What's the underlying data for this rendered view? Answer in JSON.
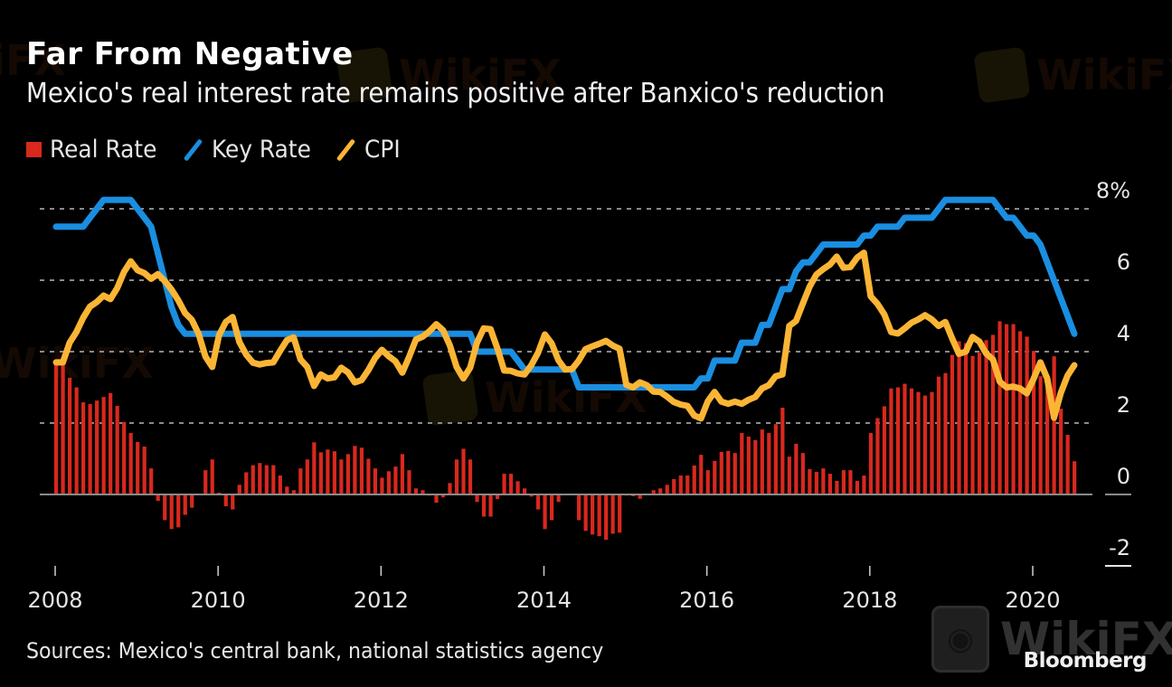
{
  "header": {
    "title": "Far From Negative",
    "subtitle": "Mexico's real interest rate remains positive after Banxico's reduction"
  },
  "legend": [
    {
      "label": "Real Rate",
      "color": "#d9281e",
      "shape": "square"
    },
    {
      "label": "Key Rate",
      "color": "#1a8ee0",
      "shape": "line"
    },
    {
      "label": "CPI",
      "color": "#fbb535",
      "shape": "line"
    }
  ],
  "footer": {
    "source": "Sources: Mexico's central bank, national statistics agency",
    "brand": "Bloomberg",
    "watermark": "WikiFX"
  },
  "chart_data": {
    "type": "bar+line",
    "title": "Far From Negative",
    "subtitle": "Mexico's real interest rate remains positive after Banxico's reduction",
    "xlabel": "",
    "ylabel": "",
    "frequency": "monthly",
    "start": "2008-01",
    "end": "2020-07",
    "x_ticks": [
      "2008",
      "2010",
      "2012",
      "2014",
      "2016",
      "2018",
      "2020"
    ],
    "y_ticks": [
      {
        "value": 8,
        "label": "8%"
      },
      {
        "value": 6,
        "label": "6"
      },
      {
        "value": 4,
        "label": "4"
      },
      {
        "value": 2,
        "label": "2"
      },
      {
        "value": 0,
        "label": "0"
      },
      {
        "value": -2,
        "label": "-2"
      }
    ],
    "ylim": [
      -2,
      8
    ],
    "grid": true,
    "legend_position": "top-left",
    "series": [
      {
        "name": "Real Rate",
        "type": "bar",
        "color": "#d9281e",
        "values": [
          3.7,
          3.7,
          3.27,
          3.0,
          2.58,
          2.53,
          2.63,
          2.73,
          2.84,
          2.48,
          2.03,
          1.72,
          1.47,
          1.34,
          0.73,
          -0.18,
          -0.72,
          -0.97,
          -0.92,
          -0.57,
          -0.37,
          -0.02,
          0.68,
          0.98,
          0.05,
          -0.33,
          -0.42,
          0.27,
          0.62,
          0.82,
          0.88,
          0.82,
          0.82,
          0.53,
          0.22,
          0.12,
          0.73,
          0.98,
          1.46,
          1.18,
          1.26,
          1.21,
          0.98,
          1.13,
          1.36,
          1.31,
          1.0,
          0.73,
          0.47,
          0.65,
          0.78,
          1.13,
          0.68,
          0.17,
          0.12,
          -0.03,
          -0.23,
          -0.08,
          0.32,
          0.98,
          1.28,
          0.98,
          -0.21,
          -0.62,
          -0.62,
          -0.13,
          0.58,
          0.58,
          0.37,
          0.17,
          -0.06,
          -0.42,
          -0.97,
          -0.72,
          -0.21,
          -0.02,
          -0.02,
          -0.72,
          -1.02,
          -1.12,
          -1.17,
          -1.27,
          -1.1,
          -1.07,
          -0.03,
          -0.05,
          -0.12,
          0.0,
          0.12,
          0.17,
          0.27,
          0.43,
          0.53,
          0.53,
          0.81,
          1.11,
          0.68,
          0.94,
          1.19,
          1.22,
          1.16,
          1.72,
          1.62,
          1.52,
          1.82,
          1.72,
          1.97,
          2.43,
          1.06,
          1.42,
          1.16,
          0.71,
          0.63,
          0.73,
          0.58,
          0.38,
          0.68,
          0.68,
          0.38,
          0.53,
          1.72,
          2.14,
          2.47,
          2.97,
          3.0,
          3.1,
          2.97,
          2.87,
          2.77,
          2.87,
          3.3,
          3.4,
          3.91,
          4.29,
          4.24,
          3.88,
          3.97,
          4.32,
          4.47,
          4.85,
          4.77,
          4.77,
          4.57,
          4.42,
          4.02,
          3.31,
          3.0,
          3.87,
          2.4,
          1.67,
          0.93
        ]
      },
      {
        "name": "Key Rate",
        "type": "line",
        "color": "#1a8ee0",
        "values": [
          7.5,
          7.5,
          7.5,
          7.5,
          7.5,
          7.75,
          8.0,
          8.25,
          8.25,
          8.25,
          8.25,
          8.25,
          8.0,
          7.75,
          7.5,
          6.75,
          6.0,
          5.25,
          4.75,
          4.5,
          4.5,
          4.5,
          4.5,
          4.5,
          4.5,
          4.5,
          4.5,
          4.5,
          4.5,
          4.5,
          4.5,
          4.5,
          4.5,
          4.5,
          4.5,
          4.5,
          4.5,
          4.5,
          4.5,
          4.5,
          4.5,
          4.5,
          4.5,
          4.5,
          4.5,
          4.5,
          4.5,
          4.5,
          4.5,
          4.5,
          4.5,
          4.5,
          4.5,
          4.5,
          4.5,
          4.5,
          4.5,
          4.5,
          4.5,
          4.5,
          4.5,
          4.5,
          4.0,
          4.0,
          4.0,
          4.0,
          4.0,
          4.0,
          3.75,
          3.5,
          3.5,
          3.5,
          3.5,
          3.5,
          3.5,
          3.5,
          3.5,
          3.0,
          3.0,
          3.0,
          3.0,
          3.0,
          3.0,
          3.0,
          3.0,
          3.0,
          3.0,
          3.0,
          3.0,
          3.0,
          3.0,
          3.0,
          3.0,
          3.0,
          3.0,
          3.25,
          3.25,
          3.75,
          3.75,
          3.75,
          3.75,
          4.25,
          4.25,
          4.25,
          4.75,
          4.75,
          5.25,
          5.75,
          5.75,
          6.25,
          6.5,
          6.5,
          6.75,
          7.0,
          7.0,
          7.0,
          7.0,
          7.0,
          7.0,
          7.25,
          7.25,
          7.5,
          7.5,
          7.5,
          7.5,
          7.75,
          7.75,
          7.75,
          7.75,
          7.75,
          8.0,
          8.25,
          8.25,
          8.25,
          8.25,
          8.25,
          8.25,
          8.25,
          8.25,
          8.0,
          7.75,
          7.75,
          7.5,
          7.25,
          7.25,
          7.0,
          6.5,
          6.0,
          5.5,
          5.0,
          4.5
        ]
      },
      {
        "name": "CPI",
        "type": "line",
        "color": "#fbb535",
        "values": [
          3.7,
          3.7,
          4.25,
          4.55,
          4.95,
          5.26,
          5.39,
          5.57,
          5.47,
          5.78,
          6.23,
          6.53,
          6.28,
          6.2,
          6.04,
          6.17,
          5.98,
          5.74,
          5.44,
          5.08,
          4.89,
          4.5,
          3.86,
          3.57,
          4.46,
          4.83,
          4.97,
          4.27,
          3.92,
          3.69,
          3.64,
          3.68,
          3.7,
          4.02,
          4.32,
          4.4,
          3.78,
          3.57,
          3.04,
          3.36,
          3.25,
          3.28,
          3.55,
          3.42,
          3.14,
          3.2,
          3.48,
          3.82,
          4.05,
          3.87,
          3.73,
          3.41,
          3.85,
          4.34,
          4.42,
          4.57,
          4.77,
          4.6,
          4.18,
          3.57,
          3.25,
          3.55,
          4.25,
          4.65,
          4.63,
          4.09,
          3.47,
          3.46,
          3.39,
          3.36,
          3.62,
          3.97,
          4.48,
          4.23,
          3.76,
          3.5,
          3.51,
          3.75,
          4.07,
          4.15,
          4.22,
          4.3,
          4.17,
          4.08,
          3.07,
          3.0,
          3.14,
          3.06,
          2.88,
          2.87,
          2.74,
          2.59,
          2.52,
          2.48,
          2.21,
          2.13,
          2.61,
          2.87,
          2.6,
          2.54,
          2.6,
          2.54,
          2.65,
          2.73,
          2.97,
          3.06,
          3.31,
          3.36,
          4.72,
          4.86,
          5.35,
          5.82,
          6.16,
          6.31,
          6.44,
          6.66,
          6.35,
          6.37,
          6.63,
          6.77,
          5.55,
          5.34,
          5.04,
          4.55,
          4.51,
          4.65,
          4.81,
          4.9,
          5.02,
          4.9,
          4.72,
          4.83,
          4.37,
          3.94,
          4.0,
          4.41,
          4.28,
          3.95,
          3.78,
          3.16,
          3.0,
          3.02,
          2.97,
          2.83,
          3.24,
          3.7,
          3.25,
          2.15,
          2.84,
          3.33,
          3.62
        ]
      }
    ]
  }
}
